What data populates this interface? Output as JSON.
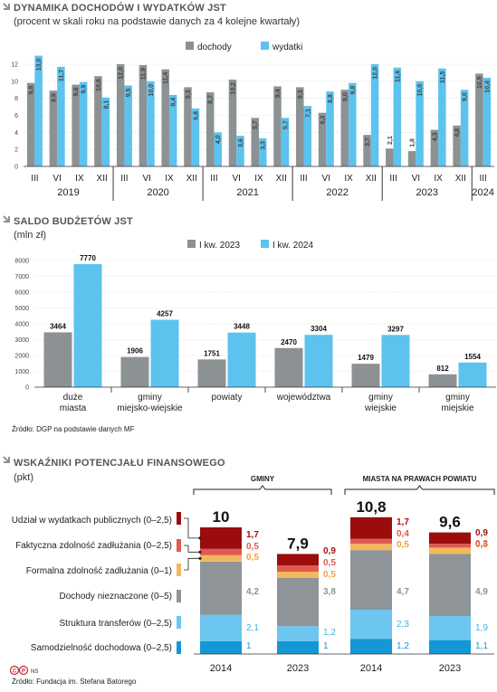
{
  "colors": {
    "income": "#8c9294",
    "expense": "#5cc3ee",
    "dark_red": "#9b0d0d",
    "red": "#e05a4f",
    "salmon": "#f2a07a",
    "orange": "#f4b75e",
    "grey": "#8e9497",
    "light_blue": "#6cc6ef",
    "blue": "#1497d4",
    "dark": "#222222"
  },
  "section1": {
    "title": "DYNAMIKA DOCHODÓW I WYDATKÓW JST",
    "subtitle": "(procent w skali roku na podstawie danych za 4 kolejne kwartały)"
  },
  "section2": {
    "title": "SALDO BUDŻETÓW JST",
    "unit": "(mln zł)",
    "source": "Źródło: DGP na podstawie danych MF"
  },
  "section3": {
    "title": "WSKAŹNIKI POTENCJAŁU FINANSOWEGO",
    "unit": "(pkt)",
    "source": "Źródło: Fundacja im. Stefana Batorego",
    "logo_text": "NS"
  },
  "chart_data": [
    {
      "type": "bar",
      "series": [
        {
          "name": "dochody",
          "values": [
            9.8,
            8.9,
            9.6,
            10.6,
            12.0,
            11.9,
            11.4,
            9.3,
            8.7,
            10.2,
            5.7,
            9.4,
            9.3,
            6.3,
            9.0,
            3.7,
            2.1,
            1.8,
            4.3,
            4.8,
            10.9
          ]
        },
        {
          "name": "wydatki",
          "values": [
            13.0,
            11.7,
            9.9,
            8.1,
            9.5,
            10.0,
            8.4,
            6.8,
            4.0,
            3.6,
            3.3,
            5.7,
            7.1,
            8.8,
            9.8,
            12.0,
            11.6,
            10.0,
            11.5,
            9.0,
            10.4
          ]
        }
      ],
      "value_labels": {
        "dochody": [
          "9,8",
          "8,9",
          "9,6",
          "10,6",
          "12,0",
          "11,9",
          "11,4",
          "9,3",
          "8,7",
          "10,2",
          "5,7",
          "9,4",
          "9,3",
          "6,3",
          "9,0",
          "3,7",
          "2,1",
          "1,8",
          "4,3",
          "4,8",
          "10,9"
        ],
        "wydatki": [
          "13,0",
          "11,7",
          "9,9",
          "8,1",
          "9,5",
          "10,0",
          "8,4",
          "6,8",
          "4,0",
          "3,6",
          "3,3",
          "5,7",
          "7,1",
          "8,8",
          "9,8",
          "12,0",
          "11,6",
          "10,0",
          "11,5",
          "9,0",
          "10,4"
        ]
      },
      "categories": [
        "III",
        "VI",
        "IX",
        "XII",
        "III",
        "VI",
        "IX",
        "XII",
        "III",
        "VI",
        "IX",
        "XII",
        "III",
        "VI",
        "IX",
        "XII",
        "III",
        "VI",
        "IX",
        "XII",
        "III"
      ],
      "years": [
        "2019",
        "2020",
        "2021",
        "2022",
        "2023",
        "2024"
      ],
      "ylim": [
        0,
        12
      ],
      "yticks": [
        "0",
        "2",
        "4",
        "6",
        "8",
        "10",
        "12"
      ],
      "legend": "top-center"
    },
    {
      "type": "bar",
      "categories": [
        "duże\nmiasta",
        "gminy\nmiejsko-wiejskie",
        "powiaty",
        "województwa",
        "gminy\nwiejskie",
        "gminy\nmiejskie"
      ],
      "series": [
        {
          "name": "I kw. 2023",
          "values": [
            3464,
            1906,
            1751,
            2470,
            1479,
            812
          ]
        },
        {
          "name": "I kw. 2024",
          "values": [
            7770,
            4257,
            3448,
            3304,
            3297,
            1554
          ]
        }
      ],
      "ylim": [
        0,
        8000
      ],
      "yticks": [
        "0",
        "1000",
        "2000",
        "3000",
        "4000",
        "5000",
        "6000",
        "7000",
        "8000"
      ],
      "legend": "top-center"
    },
    {
      "type": "bar",
      "stacked": true,
      "group_labels": [
        "GMINY",
        "MIASTA NA PRAWACH POWIATU"
      ],
      "categories": [
        "2014",
        "2023",
        "2014",
        "2023"
      ],
      "totals": [
        10,
        7.9,
        10.8,
        9.6
      ],
      "total_labels": [
        "10",
        "7,9",
        "10,8",
        "9,6"
      ],
      "series": [
        {
          "name": "Samodzielność dochodowa (0–2,5)",
          "values": [
            1,
            1,
            1.2,
            1.1
          ],
          "labels": [
            "1",
            "1",
            "1,2",
            "1,1"
          ]
        },
        {
          "name": "Struktura transferów (0–2,5)",
          "values": [
            2.1,
            1.2,
            2.3,
            1.9
          ],
          "labels": [
            "2,1",
            "1,2",
            "2,3",
            "1,9"
          ]
        },
        {
          "name": "Dochody nieznaczone (0–5)",
          "values": [
            4.2,
            3.8,
            4.7,
            4.9
          ],
          "labels": [
            "4,2",
            "3,8",
            "4,7",
            "4,9"
          ]
        },
        {
          "name": "Formalna zdolność zadłużania (0–1)",
          "values": [
            0.5,
            0.5,
            0.5,
            0.5
          ],
          "labels": [
            "0,5",
            "0,5",
            "0,5",
            "0,5"
          ]
        },
        {
          "name": "Faktyczna zdolność zadłużania (0–2,5)",
          "values": [
            0.5,
            0.5,
            0.4,
            0.3
          ],
          "labels": [
            "0,5",
            "0,5",
            "0,4",
            "0,3"
          ]
        },
        {
          "name": "Udział w wydatkach publicznych (0–2,5)",
          "values": [
            1.7,
            0.9,
            1.7,
            0.9
          ],
          "labels": [
            "1,7",
            "0,9",
            "1,7",
            "0,9"
          ]
        }
      ]
    }
  ]
}
